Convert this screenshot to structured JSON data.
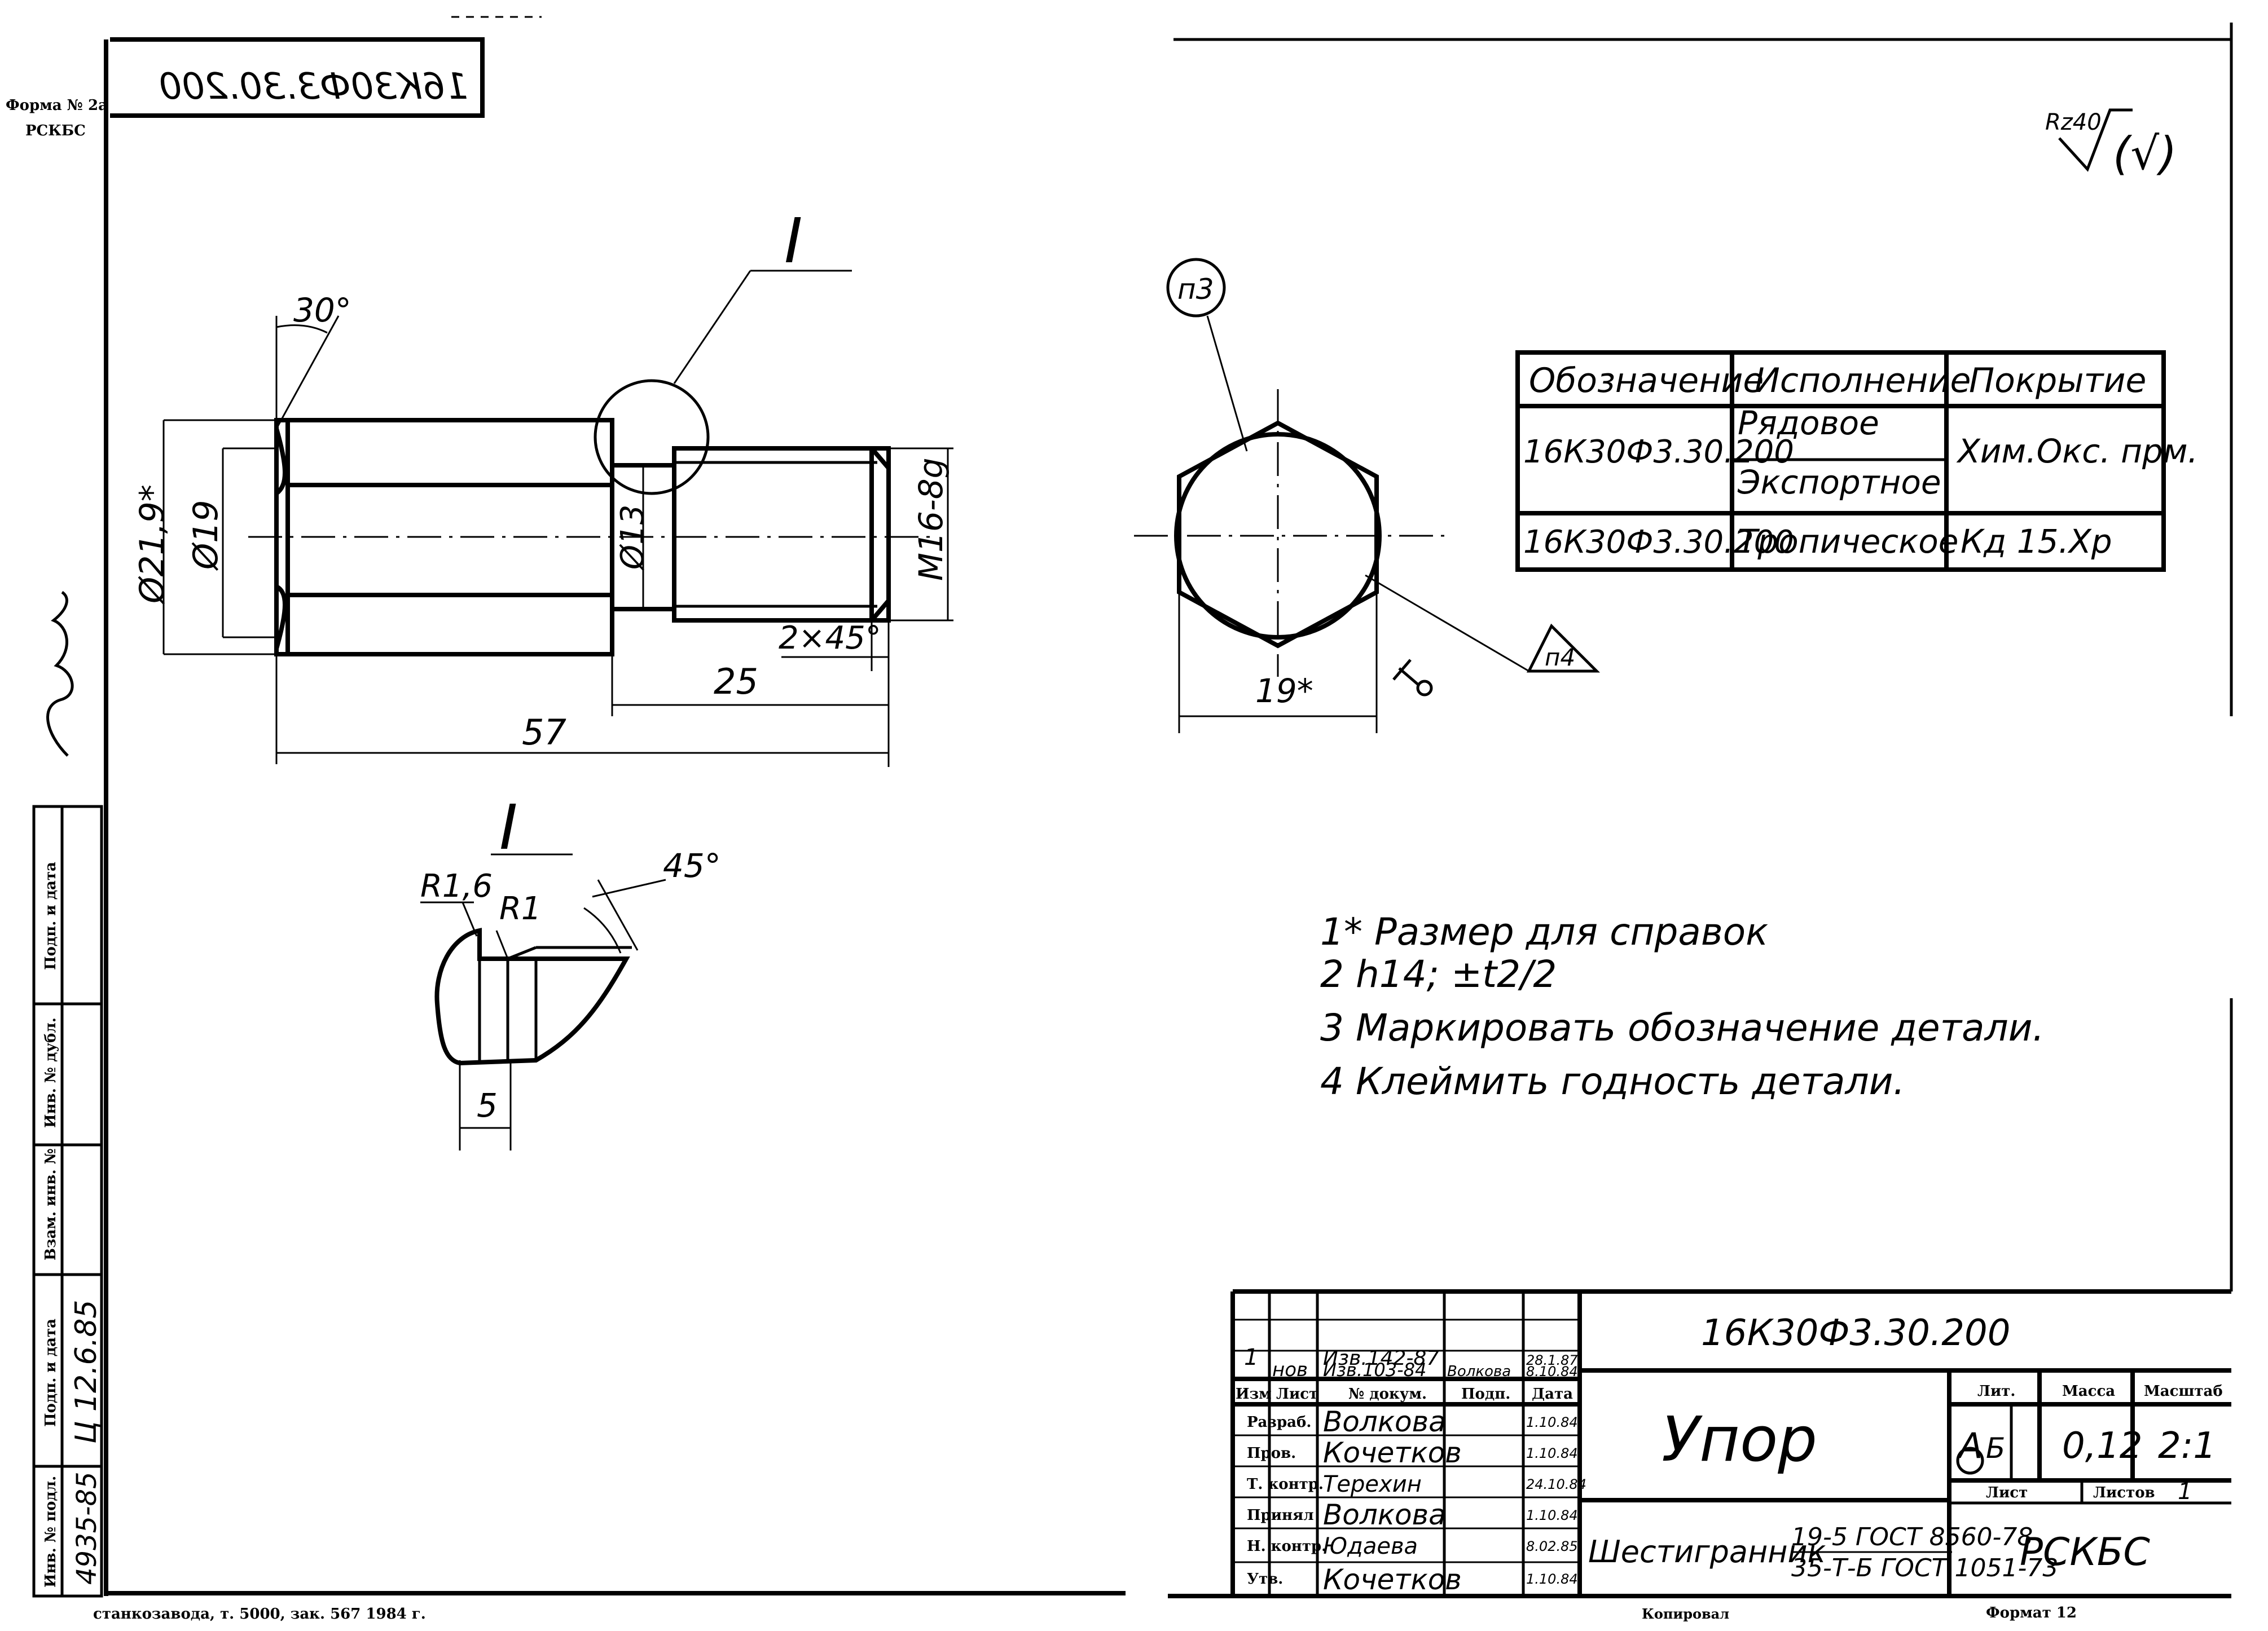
{
  "margin": {
    "forma_label": "Форма № 2a",
    "org_label": "РСКБС",
    "doc_code_mirrored": "16К30Ф3.30.200",
    "side_table": {
      "rows": [
        {
          "label": "Подп. и дата",
          "value": ""
        },
        {
          "label": "Инв. № дубл.",
          "value": ""
        },
        {
          "label": "Взам. инв. №",
          "value": ""
        },
        {
          "label": "Подп. и дата",
          "value": "Ц 12.6.85"
        },
        {
          "label": "Инв. № подл.",
          "value": "4935-85"
        }
      ]
    },
    "footer_print": "станкозавода, т. 5000, зак. 567 1984 г."
  },
  "roughness": {
    "value": "Rz40",
    "symbol": "(√)"
  },
  "side_view": {
    "section_mark": "I",
    "dims": {
      "angle_chamfer": "30°",
      "d_outer": "Ø21,9*",
      "d_head": "Ø19",
      "d_neck": "Ø13",
      "thread": "M16-8g",
      "chamfer": "2×45°",
      "len_thread": "25",
      "len_total": "57"
    }
  },
  "detail": {
    "title": "I",
    "r_big": "R1,6",
    "r_small": "R1",
    "angle": "45°",
    "width": "5"
  },
  "end_view": {
    "callout_marking": "п3",
    "callout_stamp": "п4",
    "across_flats": "19*"
  },
  "variants_table": {
    "headers": [
      "Обозначение",
      "Исполнение",
      "Покрытие"
    ],
    "rows": [
      {
        "code": "16К30Ф3.30.200",
        "variants": [
          "Рядовое",
          "Экспортное"
        ],
        "coating": "Хим.Окс. прм."
      },
      {
        "code": "16К30Ф3.30.200",
        "variants": [
          "Тропическое"
        ],
        "coating": "Кд 15.Хр"
      }
    ]
  },
  "notes": [
    "1* Размер для справок",
    "2 h14; ±t2/2",
    "3 Маркировать обозначение детали.",
    "4 Клеймить годность детали."
  ],
  "title_block": {
    "doc_code": "16К30Ф3.30.200",
    "part_name": "Упор",
    "material_prefix": "Шестигранник",
    "material_top": "19-5 ГОСТ 8560-78",
    "material_bottom": "35-Т-Б ГОСТ 1051-73",
    "org": "РСКБС",
    "lit_label": "Лит.",
    "mass_label": "Масса",
    "scale_label": "Масштаб",
    "lit_value": "А",
    "lit_value2": "Б",
    "mass_value": "0,12",
    "scale_value": "2:1",
    "sheet_label": "Лист",
    "sheets_label": "Листов",
    "sheets_value": "1",
    "change_rows": [
      {
        "num": "1",
        "sheet": "",
        "doc": "Изв.142-87",
        "sign": "",
        "date": "28.1.87"
      },
      {
        "num": "",
        "sheet": "нов",
        "doc": "Изв.103-84",
        "sign": "Волкова",
        "date": "8.10.84"
      }
    ],
    "change_header": {
      "izm": "Изм",
      "list": "Лист",
      "doc": "№ докум.",
      "sign": "Подп.",
      "date": "Дата"
    },
    "roles": [
      {
        "role": "Разраб.",
        "name": "Волкова",
        "sign": "",
        "date": "1.10.84"
      },
      {
        "role": "Пров.",
        "name": "Кочетков",
        "sign": "",
        "date": "1.10.84"
      },
      {
        "role": "Т. контр.",
        "name": "Терехин",
        "sign": "",
        "date": "24.10.84"
      },
      {
        "role": "Принял",
        "name": "Волкова",
        "sign": "",
        "date": "1.10.84"
      },
      {
        "role": "Н. контр.",
        "name": "Юдаева",
        "sign": "",
        "date": "8.02.85"
      },
      {
        "role": "Утв.",
        "name": "Кочетков",
        "sign": "",
        "date": "1.10.84"
      }
    ],
    "copied_label": "Копировал",
    "format_label": "Формат 12"
  }
}
